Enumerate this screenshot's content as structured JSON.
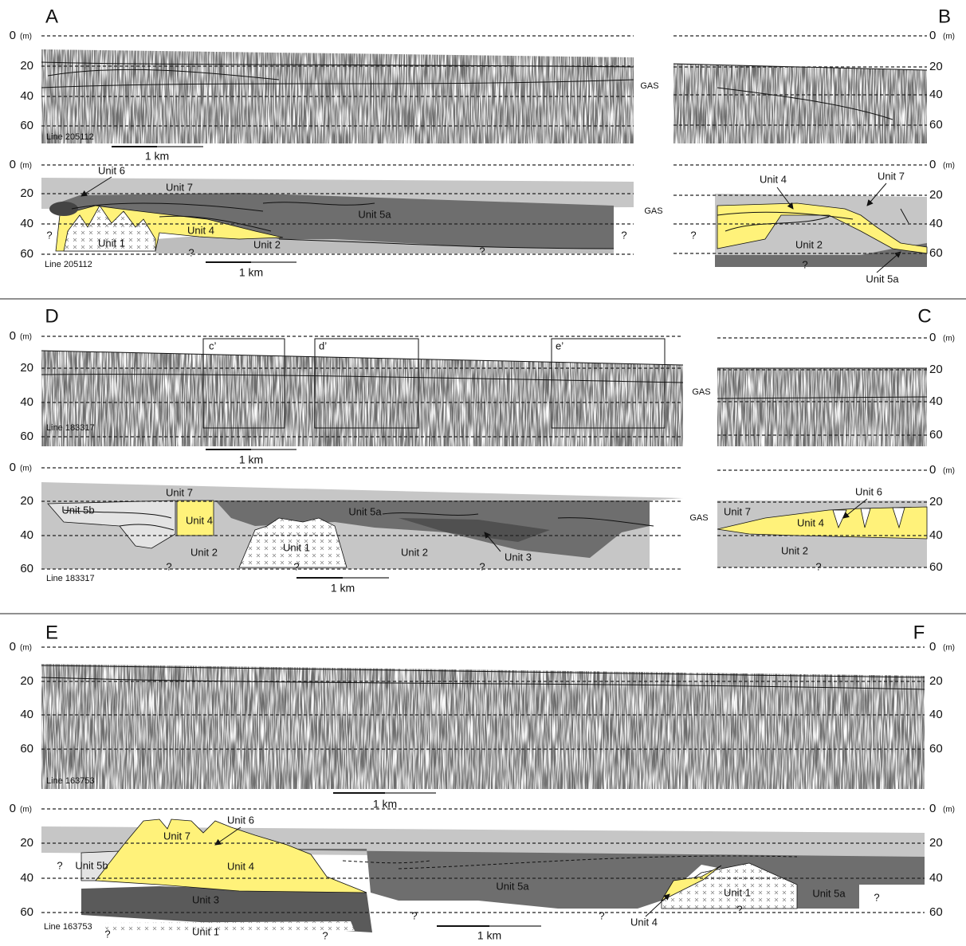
{
  "panels": [
    {
      "letter": "A",
      "depth_unit": "(m)",
      "profile": {
        "depths": [
          "0",
          "20",
          "40",
          "60"
        ],
        "line": "Line 205112",
        "scale": "1 km",
        "gas": "GAS"
      },
      "interpretation": {
        "depths": [
          "0",
          "20",
          "40",
          "60"
        ],
        "line": "Line 205112",
        "scale": "1 km",
        "gas": "GAS",
        "units": [
          "Unit 6",
          "Unit 7",
          "Unit 5a",
          "Unit 4",
          "Unit 1",
          "Unit 2"
        ],
        "queries": [
          "?",
          "?",
          "?",
          "?"
        ]
      }
    },
    {
      "letter": "B",
      "depth_unit": "(m)",
      "profile": {
        "depths": [
          "0",
          "20",
          "40",
          "60"
        ]
      },
      "interpretation": {
        "depths": [
          "0",
          "20",
          "40",
          "60"
        ],
        "units": [
          "Unit 4",
          "Unit 7",
          "Unit 2",
          "Unit 5a"
        ],
        "queries": [
          "?",
          "?"
        ]
      }
    },
    {
      "letter": "D",
      "depth_unit": "(m)",
      "profile": {
        "depths": [
          "0",
          "20",
          "40",
          "60"
        ],
        "line": "Line 183317",
        "scale": "1 km",
        "boxes": [
          "c’",
          "d’",
          "e’"
        ]
      },
      "interpretation": {
        "depths": [
          "0",
          "20",
          "40",
          "60"
        ],
        "line": "Line 183317",
        "scale": "1 km",
        "units": [
          "Unit 5b",
          "Unit 7",
          "Unit 4",
          "Unit 5a",
          "Unit 1",
          "Unit 2",
          "Unit 2",
          "Unit 3"
        ],
        "queries": [
          "?",
          "?",
          "?"
        ]
      }
    },
    {
      "letter": "C",
      "depth_unit": "(m)",
      "profile": {
        "depths": [
          "0",
          "20",
          "40",
          "60"
        ],
        "gas": "GAS"
      },
      "interpretation": {
        "depths": [
          "0",
          "20",
          "40",
          "60"
        ],
        "gas": "GAS",
        "units": [
          "Unit 7",
          "Unit 6",
          "Unit 4",
          "Unit 2"
        ],
        "queries": [
          "?"
        ]
      }
    },
    {
      "letter": "E",
      "depth_unit": "(m)",
      "profile": {
        "depths": [
          "0",
          "20",
          "40",
          "60"
        ],
        "line": "Line 163753",
        "scale": "1 km"
      },
      "interpretation": {
        "depths": [
          "0",
          "20",
          "40",
          "60"
        ],
        "line": "Line 163753",
        "scale": "1 km",
        "units": [
          "Unit 6",
          "Unit 7",
          "Unit 5b",
          "Unit 4",
          "Unit 5a",
          "Unit 3",
          "Unit 1",
          "Unit 1",
          "Unit 5a",
          "Unit 4"
        ],
        "queries": [
          "?",
          "?",
          "?",
          "?",
          "?",
          "?",
          "?"
        ]
      }
    },
    {
      "letter": "F",
      "depth_unit": "(m)",
      "profile": {
        "depths": [
          "0",
          "20",
          "40",
          "60"
        ]
      },
      "interpretation": {
        "depths": [
          "0",
          "20",
          "40",
          "60"
        ]
      }
    }
  ]
}
